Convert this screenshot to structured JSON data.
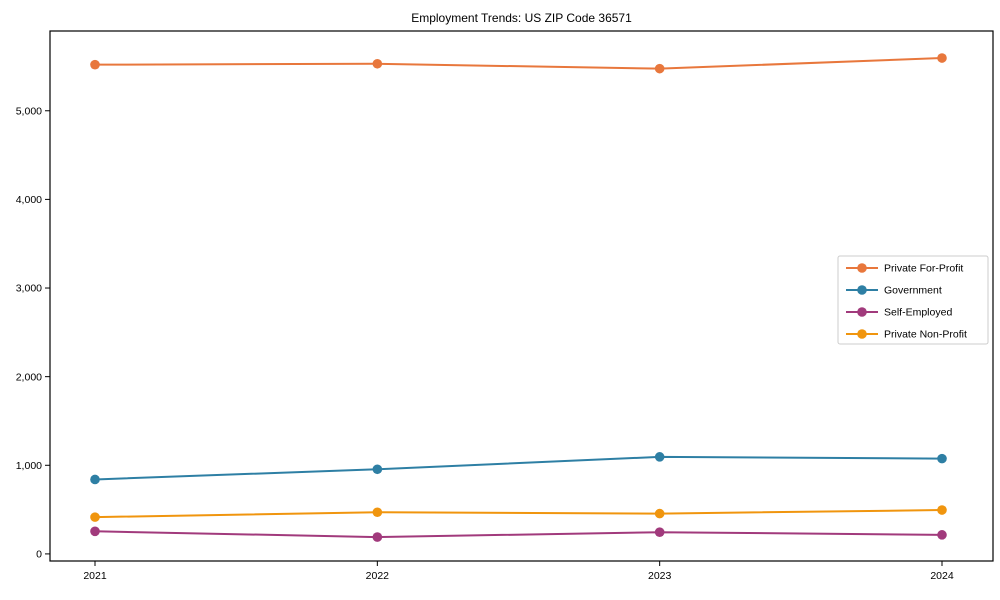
{
  "figure": {
    "background": "#ffffff",
    "axis_color": "#000000",
    "text_color": "#000000",
    "legend_border_color": "#cccccc",
    "legend_background": "#ffffff"
  },
  "chart_data": {
    "type": "line",
    "title": "Employment Trends: US ZIP Code 36571",
    "categories": [
      "2021",
      "2022",
      "2023",
      "2024"
    ],
    "series": [
      {
        "name": "Private For-Profit",
        "color": "#e8773c",
        "values": [
          5520,
          5530,
          5475,
          5595
        ]
      },
      {
        "name": "Government",
        "color": "#2e7fa4",
        "values": [
          840,
          955,
          1095,
          1075
        ]
      },
      {
        "name": "Self-Employed",
        "color": "#a13a7c",
        "values": [
          255,
          190,
          245,
          215
        ]
      },
      {
        "name": "Private Non-Profit",
        "color": "#f0950e",
        "values": [
          415,
          470,
          455,
          495
        ]
      }
    ],
    "yticks": [
      0,
      1000,
      2000,
      3000,
      4000,
      5000
    ],
    "ytick_labels": [
      "0",
      "1,000",
      "2,000",
      "3,000",
      "4,000",
      "5,000"
    ],
    "ylim": [
      -80,
      5900
    ],
    "grid": false,
    "legend_position": "center-right",
    "marker": "circle"
  }
}
